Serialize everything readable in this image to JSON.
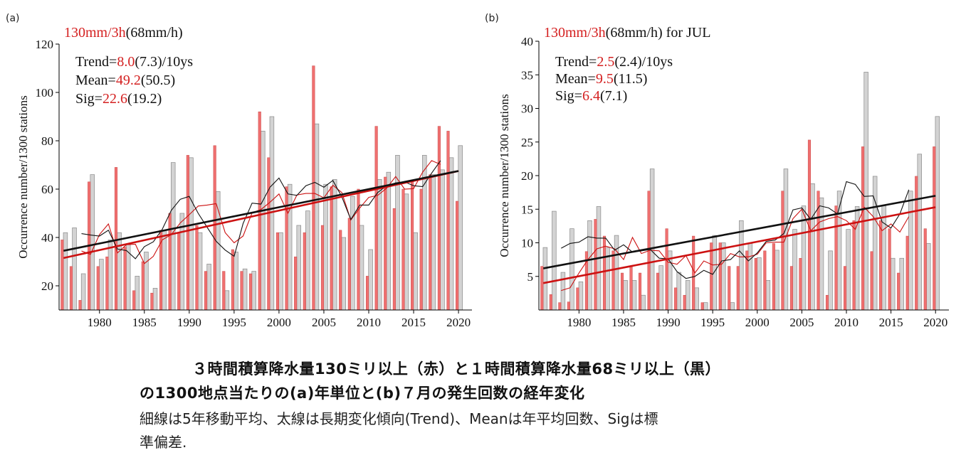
{
  "chart_data": [
    {
      "type": "bar",
      "panel_label": "(a)",
      "title_parts": [
        {
          "text": "130mm/3h",
          "color": "#d42020"
        },
        {
          "text": "(68mm/h)",
          "color": "#111111"
        }
      ],
      "ylabel": "Occurrence number/1300 stations",
      "ylim": [
        10,
        120
      ],
      "yticks": [
        20,
        40,
        60,
        80,
        100,
        120
      ],
      "xlim": [
        1975.5,
        2021.5
      ],
      "xticks": [
        1980,
        1985,
        1990,
        1995,
        2000,
        2005,
        2010,
        2015,
        2020
      ],
      "stats": [
        {
          "label": "Trend=",
          "red": "8.0",
          "black": "(7.3)/10ys"
        },
        {
          "label": "Mean=",
          "red": "49.2",
          "black": "(50.5)"
        },
        {
          "label": "Sig=",
          "red": "22.6",
          "black": "(19.2)"
        }
      ],
      "x": [
        1976,
        1977,
        1978,
        1979,
        1980,
        1981,
        1982,
        1983,
        1984,
        1985,
        1986,
        1987,
        1988,
        1989,
        1990,
        1991,
        1992,
        1993,
        1994,
        1995,
        1996,
        1997,
        1998,
        1999,
        2000,
        2001,
        2002,
        2003,
        2004,
        2005,
        2006,
        2007,
        2008,
        2009,
        2010,
        2011,
        2012,
        2013,
        2014,
        2015,
        2016,
        2017,
        2018,
        2019,
        2020
      ],
      "series": [
        {
          "name": "130mm/3h",
          "color": "#f07070",
          "values": [
            39,
            28,
            14,
            63,
            28,
            32,
            69,
            36,
            18,
            30,
            17,
            43,
            50,
            42,
            74,
            45,
            26,
            78,
            26,
            35,
            26,
            25,
            92,
            73,
            42,
            61,
            32,
            42,
            111,
            45,
            61,
            43,
            48,
            60,
            24,
            86,
            65,
            52,
            60,
            63,
            60,
            66,
            86,
            84,
            55
          ]
        },
        {
          "name": "68mm/h",
          "color": "#d3d3d3",
          "values": [
            42,
            44,
            25,
            66,
            31,
            39,
            42,
            37,
            24,
            34,
            19,
            43,
            71,
            50,
            73,
            42,
            29,
            59,
            18,
            34,
            27,
            26,
            84,
            90,
            42,
            62,
            45,
            51,
            87,
            62,
            64,
            40,
            57,
            45,
            35,
            64,
            67,
            74,
            58,
            42,
            74,
            66,
            68,
            73,
            78
          ]
        }
      ],
      "moving_average": [
        {
          "name": "130mm/3h",
          "color": "#cc1111",
          "values": [
            null,
            null,
            34.4,
            33.0,
            41.2,
            45.6,
            33.6,
            37.0,
            37.2,
            29.2,
            32.2,
            39.0,
            41.2,
            46.0,
            49.4,
            53.0,
            53.4,
            54.0,
            42.0,
            37.8,
            40.6,
            50.2,
            51.6,
            54.6,
            58.0,
            50.0,
            57.6,
            58.2,
            58.2,
            56.4,
            61.6,
            58.6,
            47.2,
            52.2,
            56.6,
            57.4,
            60.4,
            65.2,
            60.0,
            60.2,
            67.0,
            71.8,
            70.2,
            null,
            null
          ]
        },
        {
          "name": "68mm/h",
          "color": "#111111",
          "values": [
            null,
            null,
            41.6,
            41.0,
            40.6,
            43.0,
            35.2,
            34.6,
            31.2,
            36.2,
            38.2,
            43.4,
            51.2,
            55.8,
            57.0,
            50.0,
            44.2,
            38.4,
            34.8,
            32.2,
            45.8,
            54.2,
            53.8,
            60.8,
            64.6,
            58.0,
            57.4,
            61.4,
            62.8,
            60.8,
            63.6,
            56.8,
            47.4,
            53.4,
            53.4,
            58.6,
            61.4,
            62.6,
            63.0,
            61.4,
            61.0,
            66.6,
            71.8,
            null,
            null
          ]
        }
      ],
      "trend": [
        {
          "name": "130mm/3h",
          "color": "#cc1111",
          "from": [
            1976,
            31.5
          ],
          "to": [
            2020,
            67.5
          ]
        },
        {
          "name": "68mm/h",
          "color": "#111111",
          "from": [
            1976,
            34.5
          ],
          "to": [
            2020,
            67.5
          ]
        }
      ]
    },
    {
      "type": "bar",
      "panel_label": "(b)",
      "title_parts": [
        {
          "text": "130mm/3h",
          "color": "#d42020"
        },
        {
          "text": "(68mm/h) for JUL",
          "color": "#111111"
        }
      ],
      "ylabel": "Occurrence number/1300 stations",
      "ylim": [
        0,
        40
      ],
      "yticks": [
        5,
        10,
        15,
        20,
        25,
        30,
        35,
        40
      ],
      "xlim": [
        1975.5,
        2021.5
      ],
      "xticks": [
        1980,
        1985,
        1990,
        1995,
        2000,
        2005,
        2010,
        2015,
        2020
      ],
      "stats": [
        {
          "label": "Trend=",
          "red": "2.5",
          "black": "(2.4)/10ys"
        },
        {
          "label": "Mean=",
          "red": "9.5",
          "black": "(11.5)"
        },
        {
          "label": "Sig=",
          "red": "6.4",
          "black": "(7.1)"
        }
      ],
      "x": [
        1976,
        1977,
        1978,
        1979,
        1980,
        1981,
        1982,
        1983,
        1984,
        1985,
        1986,
        1987,
        1988,
        1989,
        1990,
        1991,
        1992,
        1993,
        1994,
        1995,
        1996,
        1997,
        1998,
        1999,
        2000,
        2001,
        2002,
        2003,
        2004,
        2005,
        2006,
        2007,
        2008,
        2009,
        2010,
        2011,
        2012,
        2013,
        2014,
        2015,
        2016,
        2017,
        2018,
        2019,
        2020
      ],
      "series": [
        {
          "name": "130mm/3h",
          "color": "#f07070",
          "values": [
            6.5,
            2.3,
            1.1,
            1.2,
            3.3,
            8.7,
            13.5,
            11.0,
            8.8,
            5.5,
            6.5,
            5.5,
            17.7,
            5.5,
            12.1,
            3.3,
            2.2,
            11.0,
            1.1,
            10.0,
            10.0,
            6.5,
            6.5,
            8.8,
            7.7,
            8.8,
            9.9,
            17.7,
            6.5,
            7.7,
            25.3,
            17.7,
            2.2,
            15.5,
            6.5,
            13.3,
            24.3,
            8.7,
            13.3,
            12.1,
            5.5,
            11.0,
            19.9,
            12.1,
            24.3
          ]
        },
        {
          "name": "68mm/h",
          "color": "#d3d3d3",
          "values": [
            9.3,
            14.7,
            5.6,
            12.1,
            4.2,
            13.3,
            15.4,
            9.3,
            11.1,
            4.4,
            4.4,
            2.2,
            21.0,
            6.6,
            8.8,
            5.6,
            4.4,
            3.3,
            1.1,
            11.1,
            10.0,
            1.1,
            13.3,
            9.9,
            7.8,
            4.4,
            8.9,
            21.0,
            12.0,
            15.5,
            18.8,
            16.7,
            8.8,
            17.7,
            12.0,
            15.4,
            35.4,
            19.9,
            15.5,
            7.7,
            7.7,
            17.7,
            23.2,
            9.9,
            28.8
          ]
        }
      ],
      "moving_average": [
        {
          "name": "130mm/3h",
          "color": "#cc1111",
          "values": [
            null,
            null,
            2.9,
            3.3,
            5.5,
            7.5,
            9.1,
            9.5,
            9.1,
            7.5,
            10.8,
            8.4,
            8.9,
            8.8,
            7.1,
            6.8,
            8.1,
            5.5,
            7.3,
            6.7,
            6.8,
            8.4,
            7.9,
            7.9,
            8.3,
            10.0,
            10.1,
            10.1,
            13.6,
            15.0,
            11.8,
            13.1,
            13.6,
            13.9,
            13.3,
            12.0,
            15.3,
            13.9,
            11.8,
            12.8,
            11.6,
            13.9,
            null,
            null,
            null
          ]
        },
        {
          "name": "68mm/h",
          "color": "#111111",
          "values": [
            null,
            null,
            9.2,
            9.9,
            10.1,
            10.9,
            10.7,
            10.7,
            8.9,
            9.7,
            8.6,
            8.8,
            9.0,
            7.7,
            7.6,
            5.7,
            4.7,
            5.0,
            5.9,
            5.3,
            7.3,
            7.5,
            8.8,
            7.3,
            8.5,
            10.2,
            10.4,
            11.4,
            14.9,
            15.2,
            13.5,
            15.5,
            15.2,
            14.3,
            19.1,
            18.7,
            16.9,
            17.0,
            13.1,
            12.2,
            14.3,
            17.9,
            null,
            null,
            null
          ]
        }
      ],
      "trend": [
        {
          "name": "130mm/3h",
          "color": "#cc1111",
          "from": [
            1976,
            4.0
          ],
          "to": [
            2020,
            15.3
          ]
        },
        {
          "name": "68mm/h",
          "color": "#111111",
          "from": [
            1976,
            6.2
          ],
          "to": [
            2020,
            17.0
          ]
        }
      ]
    }
  ],
  "caption": {
    "line1": "３時間積算降水量130ミリ以上（赤）と１時間積算降水量68ミリ以上（黒）",
    "line2": "の1300地点当たりの(a)年単位と(b)７月の発生回数の経年変化",
    "note1": "細線は5年移動平均、太線は長期変化傾向(Trend)、Meanは年平均回数、Sigは標",
    "note2": "準偏差."
  }
}
